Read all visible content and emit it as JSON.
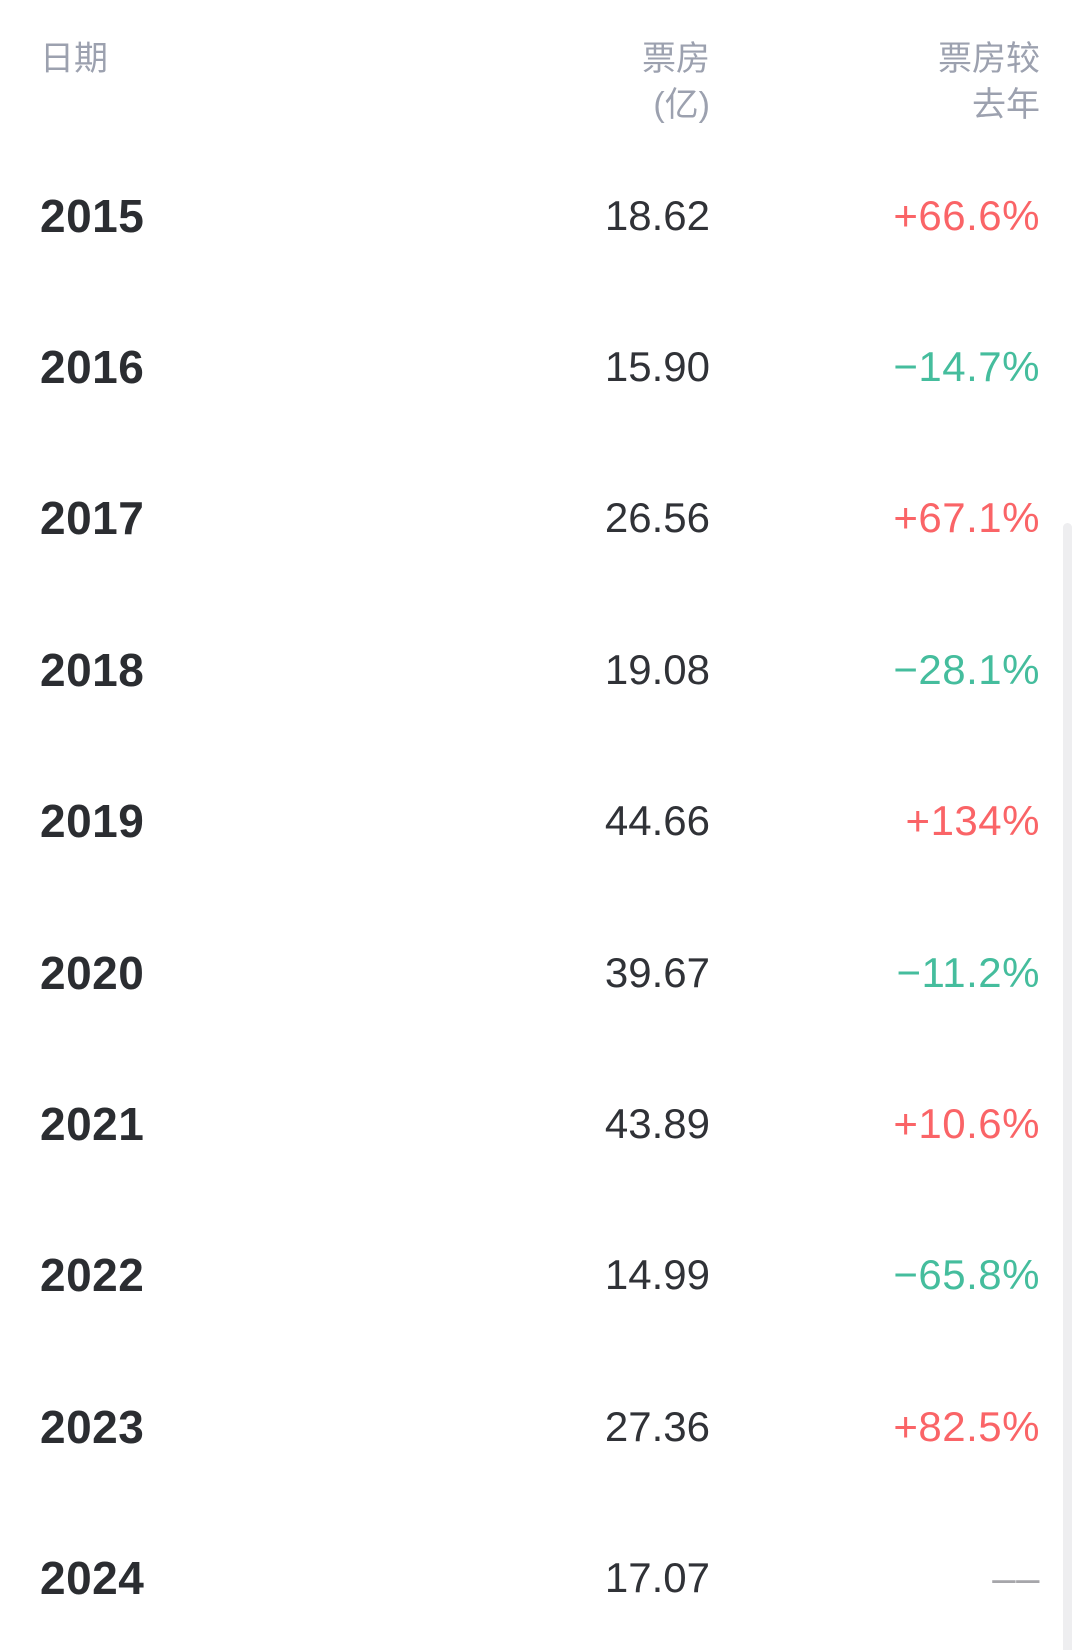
{
  "table": {
    "headers": {
      "date": "日期",
      "box_office_line1": "票房",
      "box_office_line2": "(亿)",
      "change_line1": "票房较",
      "change_line2": "去年"
    },
    "rows": [
      {
        "year": "2015",
        "box_office": "18.62",
        "change": "+66.6%",
        "trend": "up"
      },
      {
        "year": "2016",
        "box_office": "15.90",
        "change": "−14.7%",
        "trend": "down"
      },
      {
        "year": "2017",
        "box_office": "26.56",
        "change": "+67.1%",
        "trend": "up"
      },
      {
        "year": "2018",
        "box_office": "19.08",
        "change": "−28.1%",
        "trend": "down"
      },
      {
        "year": "2019",
        "box_office": "44.66",
        "change": "+134%",
        "trend": "up"
      },
      {
        "year": "2020",
        "box_office": "39.67",
        "change": "−11.2%",
        "trend": "down"
      },
      {
        "year": "2021",
        "box_office": "43.89",
        "change": "+10.6%",
        "trend": "up"
      },
      {
        "year": "2022",
        "box_office": "14.99",
        "change": "−65.8%",
        "trend": "down"
      },
      {
        "year": "2023",
        "box_office": "27.36",
        "change": "+82.5%",
        "trend": "up"
      },
      {
        "year": "2024",
        "box_office": "17.07",
        "change": "––",
        "trend": "flat"
      }
    ]
  },
  "chart_data": {
    "type": "table",
    "title": "年度票房及较去年变化",
    "columns": [
      "日期",
      "票房(亿)",
      "票房较去年"
    ],
    "categories": [
      "2015",
      "2016",
      "2017",
      "2018",
      "2019",
      "2020",
      "2021",
      "2022",
      "2023",
      "2024"
    ],
    "series": [
      {
        "name": "票房(亿)",
        "values": [
          18.62,
          15.9,
          26.56,
          19.08,
          44.66,
          39.67,
          43.89,
          14.99,
          27.36,
          17.07
        ]
      },
      {
        "name": "票房较去年(%)",
        "values": [
          66.6,
          -14.7,
          67.1,
          -28.1,
          134,
          -11.2,
          10.6,
          -65.8,
          82.5,
          null
        ]
      }
    ]
  },
  "colors": {
    "up": "#FA6467",
    "down": "#45BD9D",
    "flat": "#A6A6AA",
    "header_text": "#9CA1AF",
    "year_text": "#2B2D31",
    "value_text": "#303237",
    "scrollbar": "#EEEEF0",
    "background": "#FFFFFF"
  }
}
